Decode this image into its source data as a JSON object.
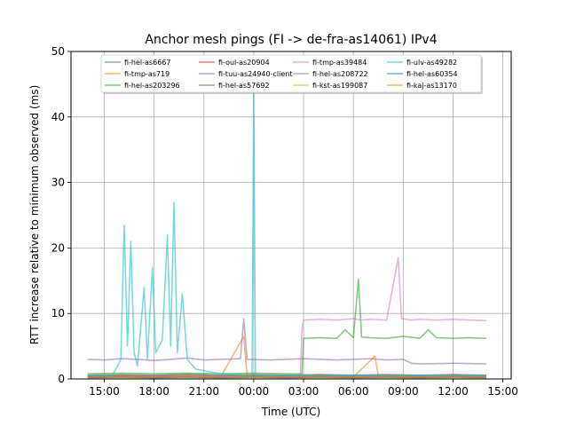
{
  "chart_data": {
    "type": "line",
    "title": "Anchor mesh pings (FI -> de-fra-as14061) IPv4",
    "xlabel": "Time (UTC)",
    "ylabel": "RTT increase relative to minimum observed (ms)",
    "x_ticks": [
      "15:00",
      "18:00",
      "21:00",
      "00:00",
      "03:00",
      "06:00",
      "09:00",
      "12:00",
      "15:00"
    ],
    "x_tick_hours": [
      15,
      18,
      21,
      24,
      27,
      30,
      33,
      36,
      39
    ],
    "xlim_hours": [
      13.0,
      39.5
    ],
    "ylim": [
      0,
      50
    ],
    "y_ticks": [
      0,
      10,
      20,
      30,
      40,
      50
    ],
    "grid": true,
    "legend_position": "top",
    "series": [
      {
        "name": "fi-hel-as6667",
        "color": "#1f77b4",
        "points": [
          [
            14,
            0.5
          ],
          [
            16,
            0.6
          ],
          [
            18,
            0.5
          ],
          [
            20,
            0.7
          ],
          [
            22,
            0.5
          ],
          [
            24,
            0.6
          ],
          [
            26,
            0.5
          ],
          [
            28,
            0.6
          ],
          [
            30,
            0.5
          ],
          [
            32,
            0.6
          ],
          [
            34,
            0.5
          ],
          [
            36,
            0.6
          ],
          [
            38,
            0.5
          ]
        ]
      },
      {
        "name": "fi-tmp-as719",
        "color": "#ff7f0e",
        "points": [
          [
            14,
            0.3
          ],
          [
            16,
            0.4
          ],
          [
            18,
            0.3
          ],
          [
            20,
            0.4
          ],
          [
            22,
            0.3
          ],
          [
            23.4,
            6.5
          ],
          [
            23.6,
            0.4
          ],
          [
            26,
            0.3
          ],
          [
            28,
            0.4
          ],
          [
            30,
            0.3
          ],
          [
            31.3,
            3.5
          ],
          [
            31.5,
            0.4
          ],
          [
            33,
            0.5
          ],
          [
            34,
            0.3
          ],
          [
            36,
            0.4
          ],
          [
            38,
            0.3
          ]
        ]
      },
      {
        "name": "fi-hel-as203296",
        "color": "#2ca02c",
        "points": [
          [
            14,
            0.8
          ],
          [
            16,
            0.9
          ],
          [
            18,
            0.8
          ],
          [
            20,
            0.9
          ],
          [
            22,
            0.8
          ],
          [
            24,
            0.9
          ],
          [
            26,
            0.8
          ],
          [
            26.9,
            0.8
          ],
          [
            27.0,
            6.2
          ],
          [
            28,
            6.3
          ],
          [
            29,
            6.2
          ],
          [
            29.5,
            7.5
          ],
          [
            30,
            6.3
          ],
          [
            30.3,
            15.2
          ],
          [
            30.5,
            6.4
          ],
          [
            31,
            6.3
          ],
          [
            32,
            6.2
          ],
          [
            33,
            6.5
          ],
          [
            34,
            6.2
          ],
          [
            34.5,
            7.5
          ],
          [
            35,
            6.3
          ],
          [
            36,
            6.2
          ],
          [
            37,
            6.3
          ],
          [
            38,
            6.2
          ]
        ]
      },
      {
        "name": "fi-oul-as20904",
        "color": "#d62728",
        "points": [
          [
            14,
            0.2
          ],
          [
            16,
            0.3
          ],
          [
            18,
            0.2
          ],
          [
            20,
            0.3
          ],
          [
            22,
            0.2
          ],
          [
            24,
            0.3
          ],
          [
            26,
            0.2
          ],
          [
            28,
            0.3
          ],
          [
            30,
            0.2
          ],
          [
            32,
            0.3
          ],
          [
            34,
            0.2
          ],
          [
            36,
            0.3
          ],
          [
            38,
            0.2
          ]
        ]
      },
      {
        "name": "fi-tuu-as24940-client",
        "color": "#9467bd",
        "points": [
          [
            14,
            3.0
          ],
          [
            15,
            2.9
          ],
          [
            16,
            3.1
          ],
          [
            17,
            3.0
          ],
          [
            18,
            2.8
          ],
          [
            19,
            3.0
          ],
          [
            20,
            3.2
          ],
          [
            21,
            2.9
          ],
          [
            22,
            3.0
          ],
          [
            23.2,
            3.1
          ],
          [
            23.4,
            9.2
          ],
          [
            23.6,
            3.0
          ],
          [
            25,
            2.9
          ],
          [
            26,
            3.0
          ],
          [
            27,
            3.1
          ],
          [
            28,
            3.0
          ],
          [
            29,
            2.9
          ],
          [
            30,
            3.0
          ],
          [
            31,
            3.1
          ],
          [
            32,
            2.9
          ],
          [
            33,
            3.0
          ],
          [
            33.5,
            2.4
          ],
          [
            34,
            2.3
          ],
          [
            36,
            2.4
          ],
          [
            38,
            2.3
          ]
        ]
      },
      {
        "name": "fi-hel-as57692",
        "color": "#8c564b",
        "points": [
          [
            14,
            0.4
          ],
          [
            16,
            0.5
          ],
          [
            18,
            0.4
          ],
          [
            20,
            0.5
          ],
          [
            22,
            0.4
          ],
          [
            24,
            0.5
          ],
          [
            26,
            0.4
          ],
          [
            28,
            0.5
          ],
          [
            30,
            0.4
          ],
          [
            32,
            0.5
          ],
          [
            34,
            0.4
          ],
          [
            36,
            0.5
          ],
          [
            38,
            0.4
          ]
        ]
      },
      {
        "name": "fi-tmp-as39484",
        "color": "#e377c2",
        "points": [
          [
            26.8,
            0.5
          ],
          [
            26.9,
            7.5
          ],
          [
            27,
            9.0
          ],
          [
            28,
            9.1
          ],
          [
            29,
            9.0
          ],
          [
            30,
            9.2
          ],
          [
            30.5,
            9.0
          ],
          [
            31,
            9.1
          ],
          [
            32,
            9.0
          ],
          [
            32.7,
            18.5
          ],
          [
            32.9,
            9.2
          ],
          [
            33.5,
            9.0
          ],
          [
            34,
            9.1
          ],
          [
            35,
            9.0
          ],
          [
            36,
            9.1
          ],
          [
            37,
            9.0
          ],
          [
            38,
            8.9
          ]
        ]
      },
      {
        "name": "fi-hel-as208722",
        "color": "#7f7f7f",
        "points": [
          [
            14,
            0.6
          ],
          [
            16,
            0.7
          ],
          [
            18,
            0.6
          ],
          [
            20,
            0.7
          ],
          [
            22,
            0.6
          ],
          [
            24,
            0.7
          ],
          [
            26,
            0.6
          ],
          [
            28,
            0.7
          ],
          [
            30,
            0.6
          ],
          [
            32,
            0.7
          ],
          [
            34,
            0.6
          ],
          [
            36,
            0.7
          ],
          [
            38,
            0.6
          ]
        ]
      },
      {
        "name": "fi-kst-as199087",
        "color": "#bcbd22",
        "points": [
          [
            14,
            0.1
          ],
          [
            16,
            0.2
          ],
          [
            18,
            0.1
          ],
          [
            20,
            0.2
          ],
          [
            22,
            0.1
          ],
          [
            24,
            0.2
          ],
          [
            26,
            0.1
          ],
          [
            28,
            0.2
          ],
          [
            30,
            0.1
          ],
          [
            32,
            0.2
          ],
          [
            34,
            0.1
          ],
          [
            36,
            0.2
          ],
          [
            38,
            0.1
          ]
        ]
      },
      {
        "name": "fi-ulv-as49282",
        "color": "#17becf",
        "points": [
          [
            14,
            0.5
          ],
          [
            15.5,
            0.6
          ],
          [
            16,
            3.0
          ],
          [
            16.2,
            23.5
          ],
          [
            16.4,
            5.0
          ],
          [
            16.6,
            21.0
          ],
          [
            16.8,
            4.0
          ],
          [
            17.0,
            2.0
          ],
          [
            17.4,
            14.0
          ],
          [
            17.6,
            3.0
          ],
          [
            17.9,
            17.0
          ],
          [
            18.1,
            4.0
          ],
          [
            18.5,
            6.0
          ],
          [
            18.8,
            22.0
          ],
          [
            19.0,
            5.0
          ],
          [
            19.2,
            27.0
          ],
          [
            19.4,
            4.0
          ],
          [
            19.7,
            13.0
          ],
          [
            20.0,
            3.0
          ],
          [
            20.5,
            1.5
          ],
          [
            22,
            0.8
          ],
          [
            23.9,
            0.5
          ],
          [
            24.0,
            45.0
          ],
          [
            24.1,
            0.5
          ],
          [
            26,
            0.6
          ],
          [
            28,
            0.5
          ],
          [
            30,
            0.6
          ],
          [
            32,
            0.5
          ],
          [
            34,
            0.6
          ],
          [
            36,
            0.5
          ],
          [
            38,
            0.6
          ]
        ]
      },
      {
        "name": "fi-hel-as60354",
        "color": "#1f77b4",
        "points": [
          [
            14,
            0.2
          ],
          [
            16,
            0.3
          ],
          [
            18,
            0.2
          ],
          [
            20,
            0.3
          ],
          [
            22,
            0.2
          ],
          [
            24,
            0.3
          ],
          [
            26,
            0.2
          ],
          [
            28,
            0.3
          ],
          [
            30,
            0.2
          ],
          [
            32,
            0.3
          ],
          [
            34,
            0.2
          ],
          [
            36,
            0.3
          ],
          [
            38,
            0.2
          ]
        ]
      },
      {
        "name": "fi-kaj-as13170",
        "color": "#ff7f0e",
        "points": [
          [
            14,
            0.3
          ],
          [
            16,
            0.4
          ],
          [
            18,
            0.3
          ],
          [
            20,
            0.4
          ],
          [
            22,
            0.3
          ],
          [
            24,
            0.4
          ],
          [
            26,
            0.3
          ],
          [
            28,
            0.4
          ],
          [
            30,
            0.3
          ],
          [
            32,
            0.4
          ],
          [
            34,
            0.3
          ],
          [
            36,
            0.4
          ],
          [
            38,
            0.3
          ]
        ]
      }
    ]
  }
}
